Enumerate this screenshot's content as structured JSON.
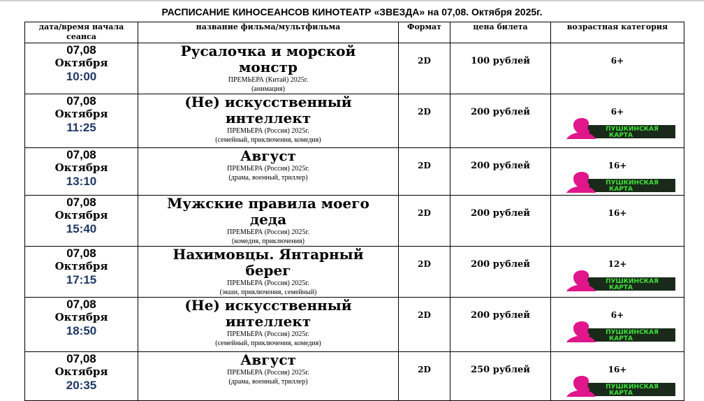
{
  "title": "РАСПИСАНИЕ КИНОСЕАНСОВ КИНОТЕАТР «ЗВЕЗДА» на 07,08. Октября 2025г.",
  "headers": [
    "дата/время начала сеанса",
    "название фильма/мультфильма",
    "Формат",
    "цена билета",
    "возрастная категория"
  ],
  "pushkin_card_label": [
    "ПУШКИНСКАЯ",
    "КАРТА"
  ],
  "colors": {
    "time": "#1f3864",
    "pushkin_pink": "#e0168a",
    "pushkin_green": "#3ee03a"
  },
  "rows": [
    {
      "date": "07,08",
      "month": "Октября",
      "time": "10:00",
      "film": "Русалочка и морской монстр",
      "premiere": "ПРЕМЬЕРА (Китай) 2025г.",
      "genre": "(анимация)",
      "format": "2D",
      "price": "100 рублей",
      "age": "6+",
      "pushkin_card": false
    },
    {
      "date": "07,08",
      "month": "Октября",
      "time": "11:25",
      "film": "(Не) искусственный интеллект",
      "premiere": "ПРЕМЬЕРА (Россия) 2025г.",
      "genre": "(семейный, приключения, комедия)",
      "format": "2D",
      "price": "200 рублей",
      "age": "6+",
      "pushkin_card": true
    },
    {
      "date": "07,08",
      "month": "Октября",
      "time": "13:10",
      "film": "Август",
      "premiere": "ПРЕМЬЕРА (Россия) 2025г.",
      "genre": "(драма, военный, триллер)",
      "format": "2D",
      "price": "200 рублей",
      "age": "16+",
      "pushkin_card": true
    },
    {
      "date": "07,08",
      "month": "Октября",
      "time": "15:40",
      "film": "Мужские правила моего деда",
      "premiere": "ПРЕМЬЕРА (Россия) 2025г.",
      "genre": "(комедия, приключения)",
      "format": "2D",
      "price": "200 рублей",
      "age": "16+",
      "pushkin_card": false
    },
    {
      "date": "07,08",
      "month": "Октября",
      "time": "17:15",
      "film": "Нахимовцы. Янтарный берег",
      "premiere": "ПРЕМЬЕРА (Россия) 2025г.",
      "genre": "(экшн, приключения, семейный)",
      "format": "2D",
      "price": "200 рублей",
      "age": "12+",
      "pushkin_card": true
    },
    {
      "date": "07,08",
      "month": "Октября",
      "time": "18:50",
      "film": "(Не) искусственный интеллект",
      "premiere": "ПРЕМЬЕРА (Россия) 2025г.",
      "genre": "(семейный, приключения, комедия)",
      "format": "2D",
      "price": "200 рублей",
      "age": "6+",
      "pushkin_card": true
    },
    {
      "date": "07,08",
      "month": "Октября",
      "time": "20:35",
      "film": "Август",
      "premiere": "ПРЕМЬЕРА (Россия) 2025г.",
      "genre": "(драма, военный, триллер)",
      "format": "2D",
      "price": "250 рублей",
      "age": "16+",
      "pushkin_card": true
    }
  ]
}
